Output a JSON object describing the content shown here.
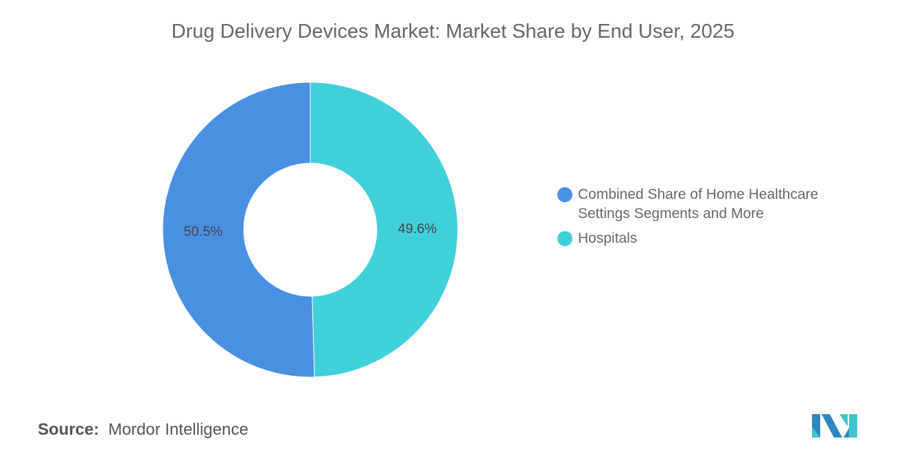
{
  "chart_data": {
    "type": "pie",
    "style": "donut",
    "title": "Drug Delivery Devices Market: Market Share by End User, 2025",
    "slices": [
      {
        "label": "Hospitals",
        "value": 49.6,
        "display": "49.6%",
        "color": "#40D0DA"
      },
      {
        "label": "Combined Share of Home Healthcare Settings Segments and More",
        "value": 50.5,
        "display": "50.5%",
        "color": "#4A90E2"
      }
    ],
    "legend_order": [
      1,
      0
    ],
    "legend_placement": "right"
  },
  "source": {
    "label": "Source:",
    "value": "Mordor Intelligence"
  }
}
